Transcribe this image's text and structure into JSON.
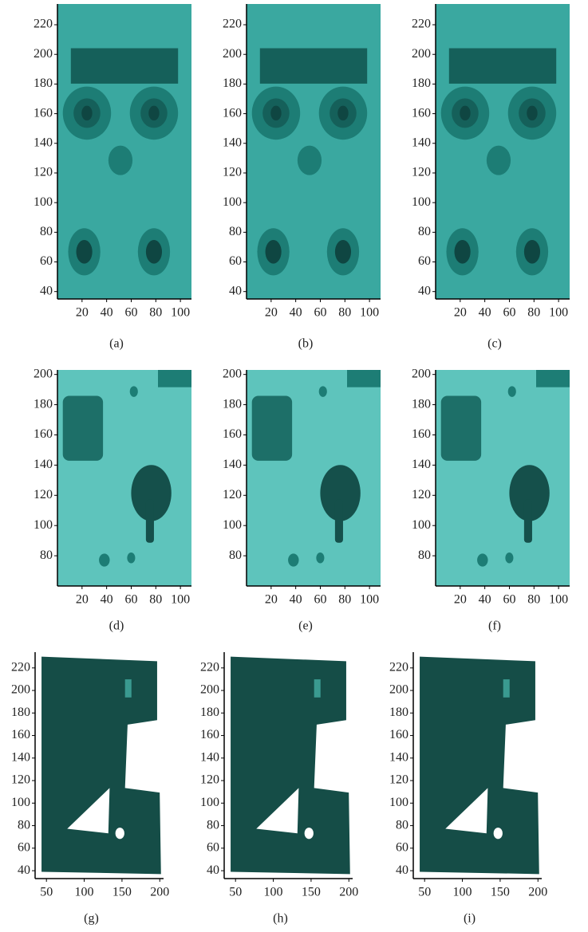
{
  "chart_data": [
    {
      "type": "image",
      "caption": "(a)",
      "xlim": [
        0,
        109
      ],
      "ylim": [
        35,
        234
      ],
      "xticks": [
        20,
        40,
        60,
        80,
        100
      ],
      "yticks": [
        40,
        60,
        80,
        100,
        120,
        140,
        160,
        180,
        200,
        220
      ]
    },
    {
      "type": "image",
      "caption": "(b)",
      "xlim": [
        0,
        109
      ],
      "ylim": [
        35,
        234
      ],
      "xticks": [
        20,
        40,
        60,
        80,
        100
      ],
      "yticks": [
        40,
        60,
        80,
        100,
        120,
        140,
        160,
        180,
        200,
        220
      ]
    },
    {
      "type": "image",
      "caption": "(c)",
      "xlim": [
        0,
        109
      ],
      "ylim": [
        35,
        234
      ],
      "xticks": [
        20,
        40,
        60,
        80,
        100
      ],
      "yticks": [
        40,
        60,
        80,
        100,
        120,
        140,
        160,
        180,
        200,
        220
      ]
    },
    {
      "type": "image",
      "caption": "(d)",
      "xlim": [
        0,
        109
      ],
      "ylim": [
        60,
        203
      ],
      "xticks": [
        20,
        40,
        60,
        80,
        100
      ],
      "yticks": [
        80,
        100,
        120,
        140,
        160,
        180,
        200
      ]
    },
    {
      "type": "image",
      "caption": "(e)",
      "xlim": [
        0,
        109
      ],
      "ylim": [
        60,
        203
      ],
      "xticks": [
        20,
        40,
        60,
        80,
        100
      ],
      "yticks": [
        80,
        100,
        120,
        140,
        160,
        180,
        200
      ]
    },
    {
      "type": "image",
      "caption": "(f)",
      "xlim": [
        0,
        109
      ],
      "ylim": [
        60,
        203
      ],
      "xticks": [
        20,
        40,
        60,
        80,
        100
      ],
      "yticks": [
        80,
        100,
        120,
        140,
        160,
        180,
        200
      ]
    },
    {
      "type": "image",
      "caption": "(g)",
      "xlim": [
        35,
        205
      ],
      "ylim": [
        33,
        234
      ],
      "xticks": [
        50,
        100,
        150,
        200
      ],
      "yticks": [
        40,
        60,
        80,
        100,
        120,
        140,
        160,
        180,
        200,
        220
      ]
    },
    {
      "type": "image",
      "caption": "(h)",
      "xlim": [
        35,
        205
      ],
      "ylim": [
        33,
        234
      ],
      "xticks": [
        50,
        100,
        150,
        200
      ],
      "yticks": [
        40,
        60,
        80,
        100,
        120,
        140,
        160,
        180,
        200,
        220
      ]
    },
    {
      "type": "image",
      "caption": "(i)",
      "xlim": [
        35,
        205
      ],
      "ylim": [
        33,
        234
      ],
      "xticks": [
        50,
        100,
        150,
        200
      ],
      "yticks": [
        40,
        60,
        80,
        100,
        120,
        140,
        160,
        180,
        200,
        220
      ]
    }
  ]
}
